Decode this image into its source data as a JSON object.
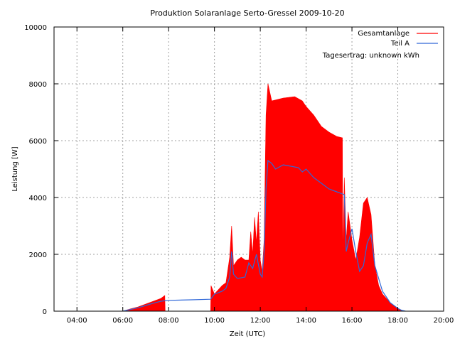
{
  "chart_data": {
    "type": "area",
    "title": "Produktion Solaranlage Serto-Gressel 2009-10-20",
    "xlabel": "Zeit (UTC)",
    "ylabel": "Leistung [W]",
    "xlim": [
      "03:00",
      "20:00"
    ],
    "ylim": [
      0,
      10000
    ],
    "x_ticks": [
      "04:00",
      "06:00",
      "08:00",
      "10:00",
      "12:00",
      "14:00",
      "16:00",
      "18:00",
      "20:00"
    ],
    "y_ticks": [
      "0",
      "2000",
      "4000",
      "6000",
      "8000",
      "10000"
    ],
    "grid": true,
    "legend_position": "top-right",
    "annotation": "Tagesertrag: unknown kWh",
    "series": [
      {
        "name": "Gesamtanlage",
        "style": "filled",
        "color": "#ff0000",
        "x": [
          "06:00",
          "06:20",
          "06:40",
          "07:00",
          "07:20",
          "07:40",
          "07:50",
          "07:51",
          "08:00",
          "09:00",
          "09:50",
          "09:51",
          "10:00",
          "10:20",
          "10:30",
          "10:40",
          "10:45",
          "10:50",
          "11:00",
          "11:10",
          "11:20",
          "11:30",
          "11:35",
          "11:40",
          "11:45",
          "11:50",
          "11:55",
          "12:00",
          "12:05",
          "12:10",
          "12:15",
          "12:20",
          "12:30",
          "13:00",
          "13:30",
          "13:50",
          "14:00",
          "14:20",
          "14:40",
          "15:00",
          "15:20",
          "15:35",
          "15:36",
          "15:40",
          "15:45",
          "15:50",
          "16:00",
          "16:10",
          "16:20",
          "16:30",
          "16:40",
          "16:50",
          "17:00",
          "17:10",
          "17:20",
          "17:30",
          "17:40",
          "18:00",
          "18:10",
          "18:20"
        ],
        "values": [
          0,
          80,
          150,
          250,
          350,
          450,
          550,
          0,
          0,
          0,
          0,
          900,
          600,
          900,
          1000,
          1900,
          3000,
          1600,
          1800,
          1900,
          1800,
          1800,
          2800,
          2000,
          3300,
          2400,
          3500,
          1800,
          1400,
          2500,
          6900,
          8000,
          7400,
          7500,
          7550,
          7400,
          7200,
          6900,
          6500,
          6300,
          6150,
          6100,
          1800,
          4700,
          2500,
          3500,
          2500,
          1800,
          2600,
          3800,
          4000,
          3400,
          1600,
          900,
          600,
          450,
          300,
          80,
          20,
          0
        ]
      },
      {
        "name": "Teil A",
        "style": "line",
        "color": "#3068d8",
        "x": [
          "06:00",
          "06:20",
          "06:40",
          "07:00",
          "07:20",
          "07:40",
          "08:00",
          "09:00",
          "09:50",
          "10:00",
          "10:20",
          "10:30",
          "10:40",
          "10:45",
          "10:50",
          "11:00",
          "11:20",
          "11:30",
          "11:40",
          "11:50",
          "12:00",
          "12:05",
          "12:10",
          "12:15",
          "12:20",
          "12:30",
          "12:40",
          "13:00",
          "13:20",
          "13:40",
          "13:50",
          "14:00",
          "14:20",
          "14:40",
          "15:00",
          "15:20",
          "15:40",
          "15:45",
          "15:50",
          "16:00",
          "16:10",
          "16:20",
          "16:30",
          "16:40",
          "16:50",
          "17:00",
          "17:20",
          "17:40",
          "18:00",
          "18:10",
          "18:20"
        ],
        "values": [
          0,
          60,
          120,
          200,
          280,
          350,
          380,
          400,
          420,
          600,
          700,
          800,
          1200,
          2100,
          1300,
          1150,
          1200,
          1700,
          1500,
          2000,
          1300,
          1200,
          2100,
          4300,
          5300,
          5200,
          5000,
          5150,
          5100,
          5050,
          4900,
          5000,
          4700,
          4500,
          4300,
          4200,
          4100,
          2100,
          2400,
          2900,
          2100,
          1400,
          1600,
          2400,
          2700,
          1600,
          700,
          300,
          100,
          30,
          0
        ]
      }
    ]
  }
}
